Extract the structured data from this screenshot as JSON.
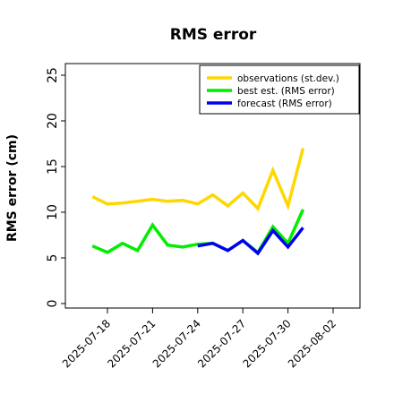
{
  "chart_data": {
    "type": "line",
    "title": "RMS error",
    "xlabel": "",
    "ylabel": "RMS error (cm)",
    "ylim": [
      0,
      25
    ],
    "yticks": [
      "0",
      "5",
      "10",
      "15",
      "20",
      "25"
    ],
    "x_ticks": [
      {
        "label": "2025-07-18",
        "color": "#000000"
      },
      {
        "label": "2025-07-21",
        "color": "#000000"
      },
      {
        "label": "2025-07-24",
        "color": "#228b22"
      },
      {
        "label": "2025-07-27",
        "color": "#000000"
      },
      {
        "label": "2025-07-30",
        "color": "#000000"
      },
      {
        "label": "2025-08-02",
        "color": "#000000"
      }
    ],
    "legend_position": "top-right",
    "grid": false,
    "series": [
      {
        "name": "observations (st.dev.)",
        "color": "#ffd700",
        "x": [
          "2025-07-17",
          "2025-07-18",
          "2025-07-19",
          "2025-07-20",
          "2025-07-21",
          "2025-07-22",
          "2025-07-23",
          "2025-07-24",
          "2025-07-25",
          "2025-07-26",
          "2025-07-27",
          "2025-07-28",
          "2025-07-29",
          "2025-07-30",
          "2025-07-31"
        ],
        "values": [
          11.7,
          10.9,
          11.0,
          11.2,
          11.4,
          11.2,
          11.3,
          10.9,
          11.9,
          10.7,
          12.1,
          10.4,
          14.6,
          10.7,
          17.0
        ]
      },
      {
        "name": "best est. (RMS error)",
        "color": "#00ee00",
        "x": [
          "2025-07-17",
          "2025-07-18",
          "2025-07-19",
          "2025-07-20",
          "2025-07-21",
          "2025-07-22",
          "2025-07-23",
          "2025-07-24",
          "2025-07-25",
          "2025-07-26",
          "2025-07-27",
          "2025-07-28",
          "2025-07-29",
          "2025-07-30",
          "2025-07-31"
        ],
        "values": [
          6.3,
          5.6,
          6.6,
          5.8,
          8.6,
          6.4,
          6.2,
          6.5,
          6.6,
          5.8,
          6.9,
          5.6,
          8.4,
          6.6,
          10.3
        ]
      },
      {
        "name": "forecast (RMS error)",
        "color": "#0000ee",
        "x": [
          "2025-07-24",
          "2025-07-25",
          "2025-07-26",
          "2025-07-27",
          "2025-07-28",
          "2025-07-29",
          "2025-07-30",
          "2025-07-31"
        ],
        "values": [
          6.3,
          6.6,
          5.8,
          6.9,
          5.5,
          8.0,
          6.2,
          8.3
        ]
      }
    ]
  }
}
